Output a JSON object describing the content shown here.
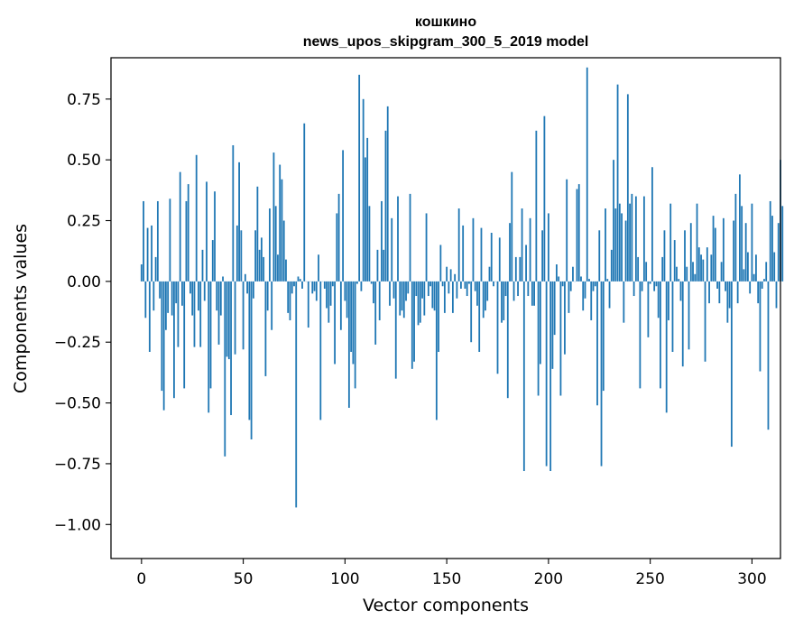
{
  "chart_data": {
    "type": "bar",
    "title": "кошкино",
    "subtitle": "news_upos_skipgram_300_5_2019 model",
    "xlabel": "Vector components",
    "ylabel": "Components values",
    "xlim": [
      -15,
      314
    ],
    "ylim": [
      -1.14,
      0.92
    ],
    "xticks": [
      0,
      50,
      100,
      150,
      200,
      250,
      300
    ],
    "xtick_labels": [
      "0",
      "50",
      "100",
      "150",
      "200",
      "250",
      "300"
    ],
    "yticks": [
      -1.0,
      -0.75,
      -0.5,
      -0.25,
      0.0,
      0.25,
      0.5,
      0.75
    ],
    "ytick_labels": [
      "−1.00",
      "−0.75",
      "−0.50",
      "−0.25",
      "0.00",
      "0.25",
      "0.50",
      "0.75"
    ],
    "bar_color": "#1f77b4",
    "values": [
      0.07,
      0.33,
      -0.15,
      0.22,
      -0.29,
      0.23,
      -0.12,
      0.1,
      0.33,
      -0.07,
      -0.45,
      -0.53,
      -0.2,
      -0.13,
      0.34,
      -0.14,
      -0.48,
      -0.09,
      -0.27,
      0.45,
      -0.1,
      -0.44,
      0.33,
      0.4,
      -0.05,
      -0.14,
      -0.27,
      0.52,
      -0.12,
      -0.27,
      0.13,
      -0.08,
      0.41,
      -0.54,
      -0.44,
      0.17,
      0.37,
      -0.12,
      -0.26,
      -0.14,
      0.02,
      -0.72,
      -0.31,
      -0.32,
      -0.55,
      0.56,
      -0.3,
      0.23,
      0.49,
      0.21,
      -0.28,
      0.03,
      -0.05,
      -0.57,
      -0.65,
      -0.07,
      0.21,
      0.39,
      0.13,
      0.18,
      0.1,
      -0.39,
      -0.12,
      0.3,
      -0.2,
      0.53,
      0.31,
      0.11,
      0.48,
      0.42,
      0.25,
      0.09,
      -0.13,
      -0.16,
      -0.05,
      -0.02,
      -0.93,
      0.02,
      0.01,
      -0.03,
      0.65,
      0.0,
      -0.19,
      0.0,
      -0.05,
      -0.04,
      -0.08,
      0.11,
      -0.57,
      0.0,
      -0.03,
      -0.11,
      -0.17,
      -0.1,
      -0.02,
      -0.34,
      0.28,
      0.36,
      -0.2,
      0.54,
      -0.08,
      -0.15,
      -0.52,
      -0.29,
      -0.34,
      -0.44,
      -0.01,
      0.85,
      -0.04,
      0.75,
      0.51,
      0.59,
      0.31,
      -0.01,
      -0.09,
      -0.26,
      0.13,
      -0.16,
      0.33,
      0.13,
      0.62,
      0.72,
      -0.1,
      0.26,
      -0.07,
      -0.4,
      0.35,
      -0.14,
      -0.12,
      -0.15,
      -0.08,
      -0.05,
      0.36,
      -0.36,
      -0.33,
      -0.06,
      -0.18,
      -0.17,
      -0.07,
      -0.14,
      0.28,
      -0.06,
      -0.02,
      -0.11,
      -0.12,
      -0.57,
      -0.29,
      0.15,
      -0.02,
      -0.13,
      0.06,
      -0.05,
      0.05,
      -0.13,
      0.03,
      -0.07,
      0.3,
      -0.03,
      0.23,
      -0.03,
      -0.06,
      -0.01,
      -0.25,
      0.26,
      -0.04,
      -0.1,
      -0.29,
      0.22,
      -0.15,
      -0.12,
      -0.08,
      0.06,
      0.2,
      -0.02,
      0.0,
      -0.38,
      0.18,
      -0.17,
      -0.16,
      -0.06,
      -0.48,
      0.24,
      0.45,
      -0.08,
      0.1,
      -0.06,
      0.1,
      0.3,
      -0.78,
      0.15,
      -0.06,
      0.26,
      -0.1,
      -0.1,
      0.62,
      -0.47,
      -0.34,
      0.21,
      0.68,
      -0.76,
      0.28,
      -0.78,
      -0.36,
      -0.22,
      0.07,
      0.02,
      -0.47,
      -0.02,
      -0.3,
      0.42,
      -0.13,
      -0.04,
      0.06,
      0.0,
      0.38,
      0.4,
      0.02,
      -0.12,
      -0.07,
      0.88,
      0.01,
      -0.16,
      -0.04,
      -0.02,
      -0.51,
      0.21,
      -0.76,
      -0.45,
      0.3,
      0.01,
      -0.11,
      0.13,
      0.5,
      0.3,
      0.81,
      0.32,
      0.28,
      -0.17,
      0.25,
      0.77,
      0.32,
      0.36,
      -0.06,
      0.35,
      0.1,
      -0.44,
      -0.04,
      0.35,
      0.08,
      -0.23,
      -0.01,
      0.47,
      -0.04,
      -0.02,
      -0.15,
      -0.44,
      0.1,
      0.21,
      -0.54,
      -0.16,
      0.32,
      -0.29,
      0.17,
      0.06,
      0.01,
      -0.08,
      -0.35,
      0.21,
      0.06,
      -0.28,
      0.24,
      0.08,
      0.03,
      0.32,
      0.14,
      0.11,
      0.09,
      -0.33,
      0.14,
      -0.09,
      0.11,
      0.27,
      0.22,
      -0.03,
      -0.09,
      0.08,
      0.26,
      -0.04,
      -0.17,
      -0.11,
      -0.68,
      0.25,
      0.36,
      -0.09,
      0.44,
      0.31,
      0.05,
      0.24,
      0.12,
      -0.05,
      0.32,
      0.03,
      0.11,
      -0.09,
      -0.37,
      -0.03,
      0.01,
      0.08,
      -0.61,
      0.33,
      0.27,
      0.12,
      -0.11,
      0.24,
      0.5,
      0.31
    ]
  }
}
